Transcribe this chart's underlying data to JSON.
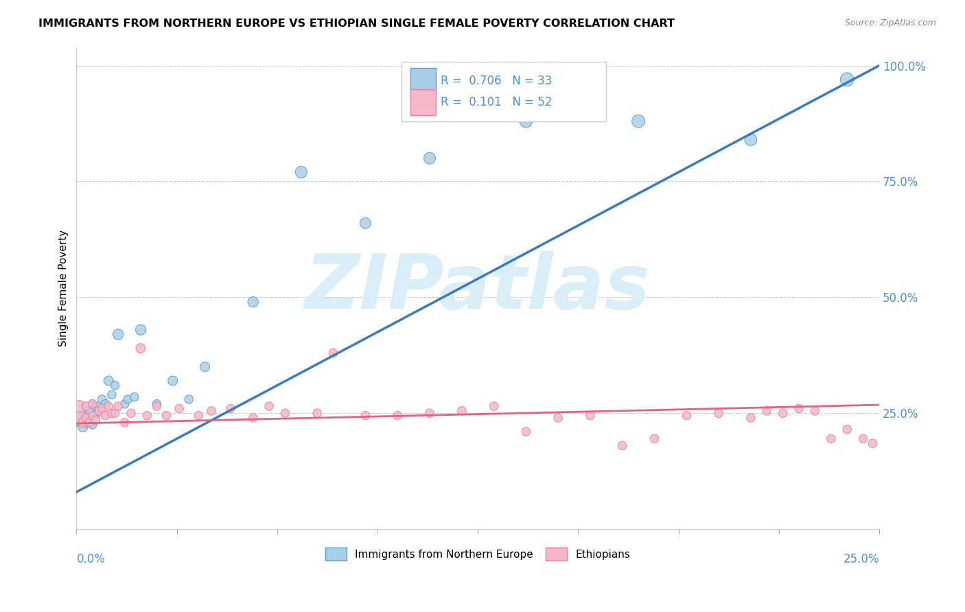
{
  "title": "IMMIGRANTS FROM NORTHERN EUROPE VS ETHIOPIAN SINGLE FEMALE POVERTY CORRELATION CHART",
  "source": "Source: ZipAtlas.com",
  "ylabel": "Single Female Poverty",
  "legend_label1": "Immigrants from Northern Europe",
  "legend_label2": "Ethiopians",
  "blue_color": "#a8cfe8",
  "pink_color": "#f4b8c8",
  "blue_edge_color": "#5b9dc9",
  "pink_edge_color": "#e87fa0",
  "blue_line_color": "#3a7bbf",
  "pink_line_color": "#e8607a",
  "R_color": "#4a90d9",
  "blue_scatter_x": [
    0.001,
    0.002,
    0.003,
    0.003,
    0.004,
    0.004,
    0.005,
    0.005,
    0.006,
    0.006,
    0.007,
    0.008,
    0.009,
    0.01,
    0.011,
    0.012,
    0.013,
    0.015,
    0.016,
    0.018,
    0.02,
    0.025,
    0.03,
    0.035,
    0.04,
    0.055,
    0.07,
    0.09,
    0.11,
    0.14,
    0.175,
    0.21,
    0.24
  ],
  "blue_scatter_y": [
    0.235,
    0.22,
    0.23,
    0.245,
    0.24,
    0.255,
    0.225,
    0.27,
    0.245,
    0.265,
    0.255,
    0.28,
    0.27,
    0.32,
    0.29,
    0.31,
    0.42,
    0.27,
    0.28,
    0.285,
    0.43,
    0.27,
    0.32,
    0.28,
    0.35,
    0.49,
    0.77,
    0.66,
    0.8,
    0.88,
    0.88,
    0.84,
    0.97
  ],
  "blue_scatter_s": [
    200,
    100,
    80,
    80,
    80,
    80,
    80,
    80,
    80,
    80,
    80,
    80,
    80,
    100,
    80,
    80,
    120,
    80,
    80,
    80,
    120,
    80,
    100,
    80,
    100,
    120,
    150,
    130,
    150,
    180,
    180,
    160,
    200
  ],
  "pink_scatter_x": [
    0.001,
    0.001,
    0.002,
    0.003,
    0.003,
    0.004,
    0.005,
    0.005,
    0.006,
    0.007,
    0.008,
    0.009,
    0.01,
    0.011,
    0.012,
    0.013,
    0.015,
    0.017,
    0.02,
    0.022,
    0.025,
    0.028,
    0.032,
    0.038,
    0.042,
    0.048,
    0.055,
    0.06,
    0.065,
    0.075,
    0.08,
    0.09,
    0.1,
    0.11,
    0.12,
    0.13,
    0.14,
    0.15,
    0.16,
    0.17,
    0.18,
    0.19,
    0.2,
    0.21,
    0.215,
    0.22,
    0.225,
    0.23,
    0.235,
    0.24,
    0.245,
    0.248
  ],
  "pink_scatter_y": [
    0.24,
    0.265,
    0.23,
    0.24,
    0.265,
    0.23,
    0.245,
    0.27,
    0.235,
    0.255,
    0.26,
    0.245,
    0.265,
    0.25,
    0.25,
    0.265,
    0.23,
    0.25,
    0.39,
    0.245,
    0.265,
    0.245,
    0.26,
    0.245,
    0.255,
    0.26,
    0.24,
    0.265,
    0.25,
    0.25,
    0.38,
    0.245,
    0.245,
    0.25,
    0.255,
    0.265,
    0.21,
    0.24,
    0.245,
    0.18,
    0.195,
    0.245,
    0.25,
    0.24,
    0.255,
    0.25,
    0.26,
    0.255,
    0.195,
    0.215,
    0.195,
    0.185
  ],
  "pink_scatter_s": [
    200,
    150,
    100,
    80,
    80,
    80,
    80,
    80,
    80,
    80,
    80,
    80,
    80,
    80,
    80,
    80,
    80,
    80,
    100,
    80,
    80,
    80,
    80,
    80,
    80,
    80,
    80,
    80,
    80,
    80,
    80,
    80,
    80,
    80,
    80,
    80,
    80,
    80,
    80,
    80,
    80,
    80,
    80,
    80,
    80,
    80,
    80,
    80,
    80,
    80,
    80,
    80
  ],
  "blue_line_x": [
    0.0,
    0.25
  ],
  "blue_line_y": [
    0.08,
    1.0
  ],
  "pink_line_x": [
    0.0,
    0.25
  ],
  "pink_line_y": [
    0.228,
    0.268
  ],
  "watermark_text": "ZIPatlas",
  "watermark_color": "#daeef8",
  "xlim": [
    0.0,
    0.25
  ],
  "ylim": [
    0.0,
    1.04
  ],
  "yticks": [
    0.25,
    0.5,
    0.75,
    1.0
  ],
  "ytick_labels": [
    "25.0%",
    "50.0%",
    "75.0%",
    "100.0%"
  ]
}
